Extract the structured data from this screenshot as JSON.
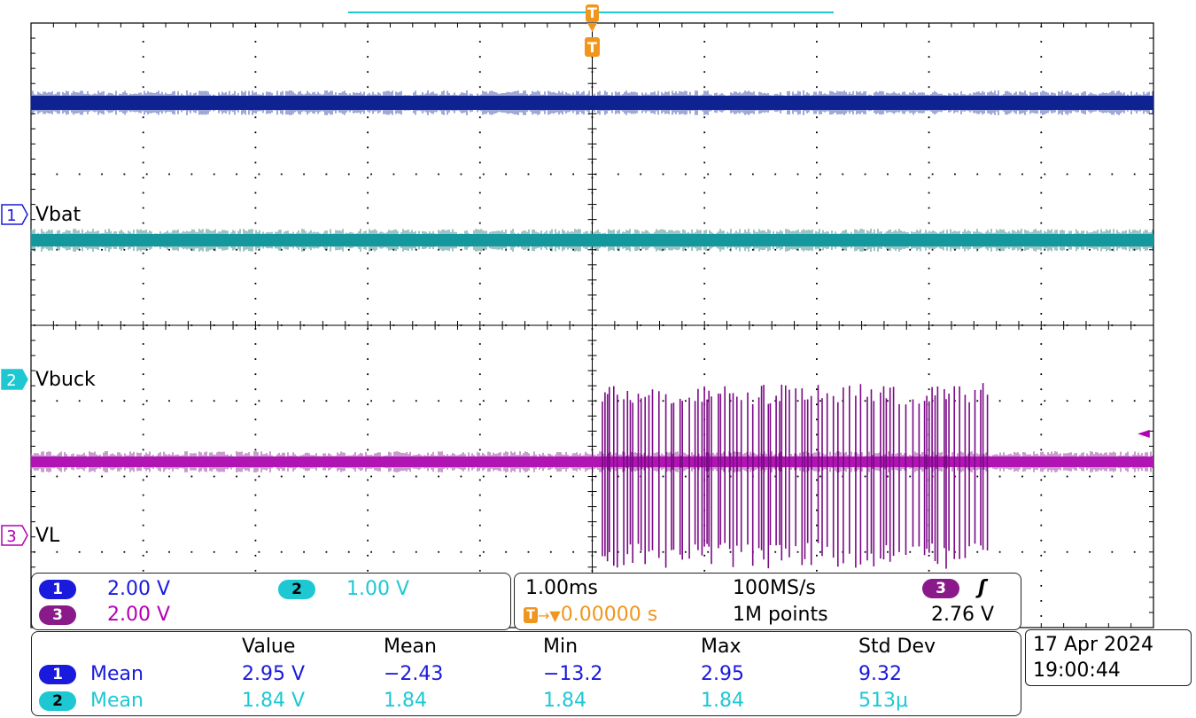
{
  "colors": {
    "ch1": "#0b1f8c",
    "ch2": "#1ab7bf",
    "ch2_dark": "#0c6a6e",
    "ch3": "#d51bd1",
    "ch3_dark": "#7a0a86",
    "trigger": "#f0961e",
    "grid": "#000000"
  },
  "channels": [
    {
      "id": "1",
      "label": "Vbat",
      "scale": "2.00 V",
      "color": "#0b1f8c"
    },
    {
      "id": "2",
      "label": "Vbuck",
      "scale": "1.00 V",
      "color": "#1ab7bf"
    },
    {
      "id": "3",
      "label": "VL",
      "scale": "2.00 V",
      "color": "#b400b4"
    }
  ],
  "trigger_marker": "T",
  "trigger_level_marker": "◄",
  "timebase": {
    "time_per_div": "1.00ms",
    "sample_rate": "100MS/s",
    "trigger_icon": "T",
    "trigger_offset": "0.00000 s",
    "record_length": "1M points",
    "trigger_channel": "3",
    "trigger_slope": "ʃ",
    "trigger_level": "2.76 V"
  },
  "measurements": {
    "headers": [
      "Value",
      "Mean",
      "Min",
      "Max",
      "Std Dev"
    ],
    "rows": [
      {
        "channel": "1",
        "type": "Mean",
        "value": "2.95 V",
        "mean": "−2.43",
        "min": "−13.2",
        "max": "2.95",
        "std_dev": "9.32"
      },
      {
        "channel": "2",
        "type": "Mean",
        "value": "1.84 V",
        "mean": "1.84",
        "min": "1.84",
        "max": "1.84",
        "std_dev": "513μ"
      }
    ]
  },
  "datetime": {
    "date": "17 Apr  2024",
    "time": "19:00:44"
  }
}
